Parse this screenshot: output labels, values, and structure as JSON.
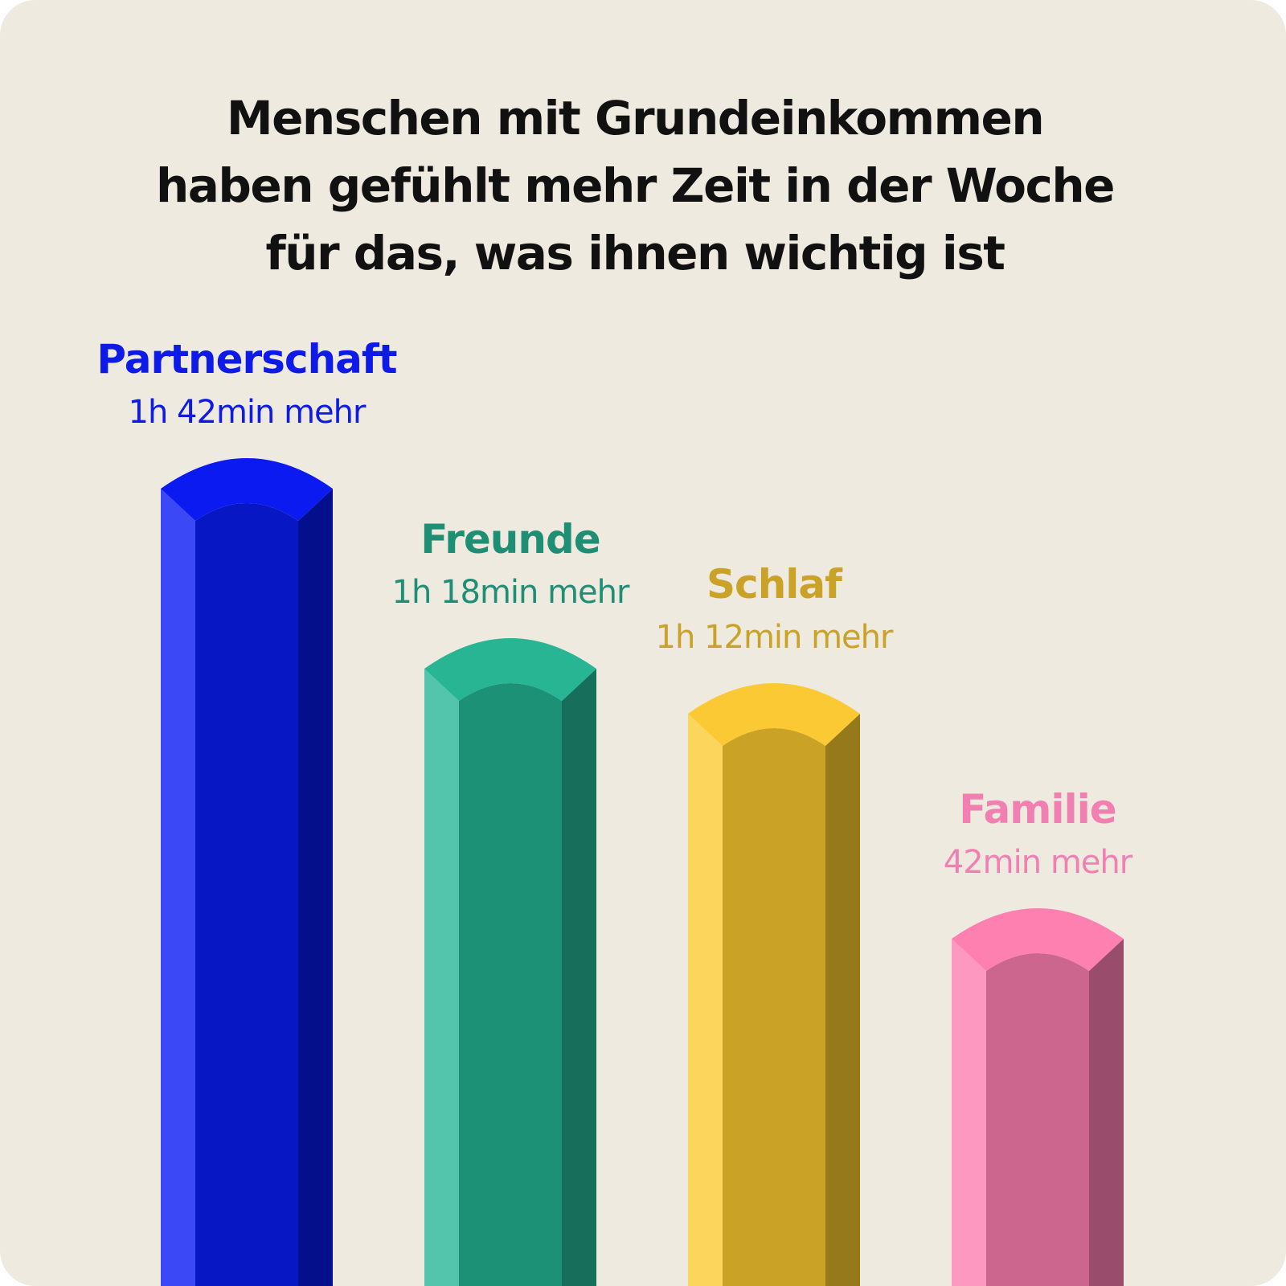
{
  "title_lines": [
    "Menschen mit Grundeinkommen",
    "haben gefühlt mehr Zeit in der Woche",
    "für das, was ihnen wichtig ist"
  ],
  "chart_data": {
    "type": "bar",
    "title": "Menschen mit Grundeinkommen haben gefühlt mehr Zeit in der Woche für das, was ihnen wichtig ist",
    "categories": [
      "Partnerschaft",
      "Freunde",
      "Schlaf",
      "Familie"
    ],
    "values": [
      102,
      78,
      72,
      42
    ],
    "value_labels": [
      "1h 42min mehr",
      "1h 18min mehr",
      "1h 12min mehr",
      "42min mehr"
    ],
    "unit": "min",
    "xlabel": "",
    "ylabel": "",
    "grid": false,
    "legend": "none",
    "colors": [
      {
        "label": "#0e1ae8",
        "top": "#0b1af0",
        "left": "#3b48f5",
        "front": "#0717c4",
        "right": "#040f8c"
      },
      {
        "label": "#1e8f74",
        "top": "#27b594",
        "left": "#52c5ac",
        "front": "#1c9176",
        "right": "#166e5b"
      },
      {
        "label": "#c9a227",
        "top": "#fbc934",
        "left": "#fbd55c",
        "front": "#c9a226",
        "right": "#96791a"
      },
      {
        "label": "#f27fb2",
        "top": "#fd80b0",
        "left": "#fd98c0",
        "front": "#cc668e",
        "right": "#994c6b"
      }
    ]
  }
}
